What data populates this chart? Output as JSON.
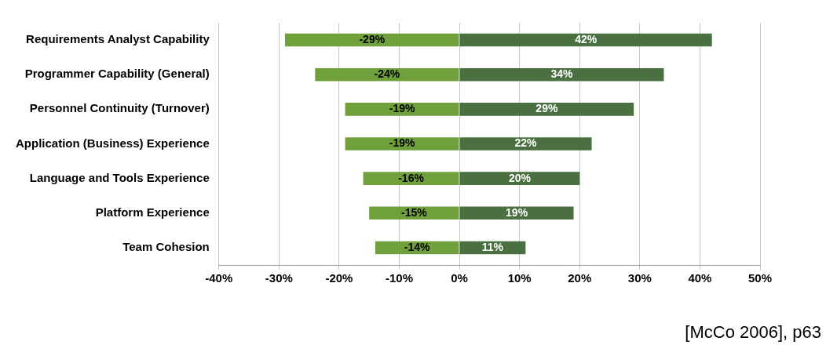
{
  "chart_data": {
    "type": "bar",
    "orientation": "horizontal",
    "stacked": true,
    "grid": "x",
    "legend": false,
    "categories": [
      "Requirements Analyst Capability",
      "Programmer Capability (General)",
      "Personnel Continuity (Turnover)",
      "Application (Business) Experience",
      "Language and Tools Experience",
      "Platform Experience",
      "Team Cohesion"
    ],
    "series": [
      {
        "color": "#70a03c",
        "values": [
          -29,
          -24,
          -19,
          -19,
          -16,
          -15,
          -14
        ],
        "value_labels": [
          "-29%",
          "-24%",
          "-19%",
          "-19%",
          "-16%",
          "-15%",
          "-14%"
        ]
      },
      {
        "color": "#4a6f40",
        "values": [
          42,
          34,
          29,
          22,
          20,
          19,
          11
        ],
        "value_labels": [
          "42%",
          "34%",
          "29%",
          "22%",
          "20%",
          "19%",
          "11%"
        ]
      }
    ],
    "xlim": [
      -40,
      50
    ],
    "xticks": [
      {
        "value": -40,
        "label": "-40%"
      },
      {
        "value": -30,
        "label": "-30%"
      },
      {
        "value": -20,
        "label": "-20%"
      },
      {
        "value": -10,
        "label": "-10%"
      },
      {
        "value": 0,
        "label": "0%"
      },
      {
        "value": 10,
        "label": "10%"
      },
      {
        "value": 20,
        "label": "20%"
      },
      {
        "value": 30,
        "label": "30%"
      },
      {
        "value": 40,
        "label": "40%"
      },
      {
        "value": 50,
        "label": "50%"
      }
    ],
    "annotations": [
      "[McCo 2006], p63"
    ]
  }
}
